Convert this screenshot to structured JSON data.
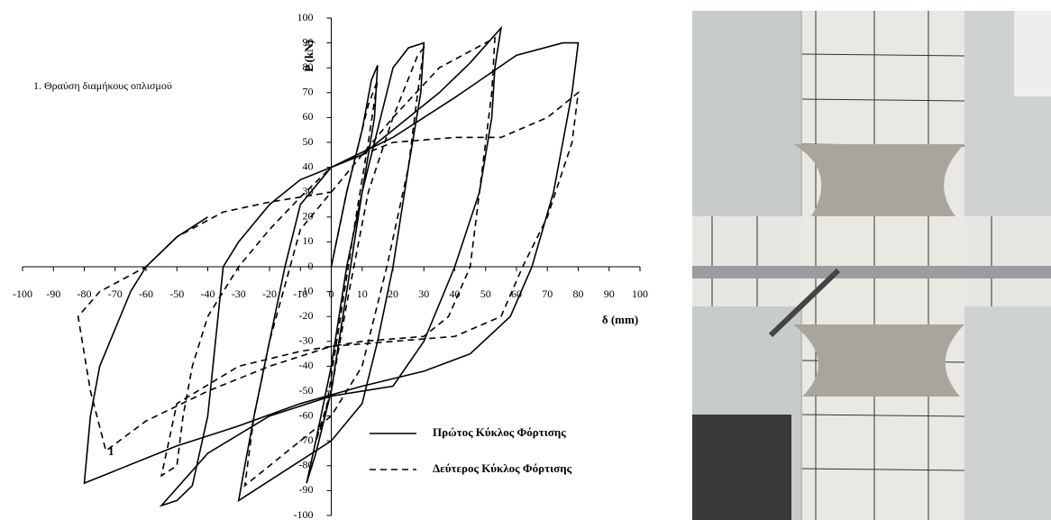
{
  "chart_data": {
    "type": "line",
    "x_label": "δ (mm)",
    "y_label": "P (kN)",
    "annotations": [
      "1. Θραύση διαμήκους οπλισμού",
      "1"
    ],
    "xlim": [
      -100,
      100
    ],
    "ylim": [
      -100,
      100
    ],
    "xticks": [
      -100,
      -90,
      -80,
      -70,
      -60,
      -50,
      -40,
      -30,
      -20,
      -10,
      0,
      10,
      20,
      30,
      40,
      50,
      60,
      70,
      80,
      90,
      100
    ],
    "yticks": [
      -100,
      -90,
      -80,
      -70,
      -60,
      -50,
      -40,
      -30,
      -20,
      -10,
      0,
      10,
      20,
      30,
      40,
      50,
      60,
      70,
      80,
      90,
      100
    ],
    "legend": "lower right",
    "series": [
      {
        "name": "Πρώτος Κύκλος Φόρτισης",
        "color": "#000000",
        "line_style": "solid",
        "x": [
          0,
          5,
          10,
          13,
          15,
          14,
          10,
          5,
          0,
          -5,
          -8,
          -5,
          0,
          5,
          10,
          15,
          20,
          25,
          30,
          29,
          25,
          20,
          15,
          10,
          0,
          -15,
          -30,
          -28,
          -25,
          -20,
          -15,
          -10,
          0,
          10,
          20,
          35,
          45,
          55,
          53,
          52,
          48,
          40,
          30,
          20,
          0,
          -20,
          -40,
          -55,
          -50,
          -45,
          -40,
          -35,
          -30,
          -20,
          -10,
          0,
          20,
          40,
          60,
          75,
          80,
          78,
          72,
          65,
          58,
          45,
          30,
          10,
          -10,
          -30,
          -50,
          -70,
          -80,
          -78,
          -75,
          -65,
          -60,
          -50,
          -40
        ],
        "values": [
          0,
          30,
          55,
          75,
          81,
          60,
          30,
          0,
          -40,
          -70,
          -87,
          -75,
          -50,
          -10,
          30,
          55,
          80,
          88,
          90,
          70,
          40,
          0,
          -30,
          -55,
          -70,
          -82,
          -94,
          -80,
          -60,
          -30,
          0,
          25,
          40,
          45,
          55,
          70,
          82,
          96,
          80,
          60,
          30,
          0,
          -30,
          -48,
          -52,
          -60,
          -75,
          -96,
          -94,
          -88,
          -60,
          0,
          10,
          25,
          35,
          40,
          52,
          68,
          85,
          90,
          90,
          70,
          30,
          0,
          -20,
          -35,
          -42,
          -48,
          -55,
          -64,
          -72,
          -82,
          -87,
          -60,
          -40,
          -10,
          0,
          12,
          20
        ]
      },
      {
        "name": "Δεύτερος Κύκλος Φόρτισης",
        "color": "#000000",
        "line_style": "dashed",
        "x": [
          0,
          5,
          12,
          15,
          12,
          8,
          3,
          -2,
          -5,
          0,
          5,
          12,
          20,
          28,
          30,
          28,
          25,
          18,
          10,
          0,
          -15,
          -28,
          -25,
          -20,
          -10,
          0,
          20,
          35,
          50,
          53,
          52,
          48,
          45,
          38,
          30,
          10,
          -10,
          -30,
          -50,
          -55,
          -50,
          -48,
          -45,
          -40,
          -30,
          -20,
          -10,
          0,
          20,
          40,
          55,
          70,
          80,
          78,
          70,
          62,
          55,
          40,
          20,
          0,
          -20,
          -40,
          -60,
          -73,
          -78,
          -82,
          -75,
          -60,
          -50,
          -35,
          -20,
          -10,
          0
        ],
        "values": [
          0,
          30,
          65,
          75,
          50,
          20,
          -20,
          -60,
          -70,
          -50,
          -15,
          30,
          60,
          85,
          88,
          70,
          40,
          0,
          -40,
          -60,
          -75,
          -88,
          -60,
          -30,
          15,
          30,
          60,
          80,
          90,
          92,
          70,
          30,
          0,
          -20,
          -28,
          -30,
          -34,
          -40,
          -55,
          -84,
          -80,
          -60,
          -40,
          -20,
          0,
          15,
          28,
          40,
          50,
          52,
          52,
          60,
          70,
          50,
          20,
          0,
          -20,
          -28,
          -30,
          -32,
          -40,
          -50,
          -62,
          -74,
          -50,
          -20,
          -10,
          0,
          12,
          22,
          26,
          28,
          30
        ]
      }
    ]
  }
}
